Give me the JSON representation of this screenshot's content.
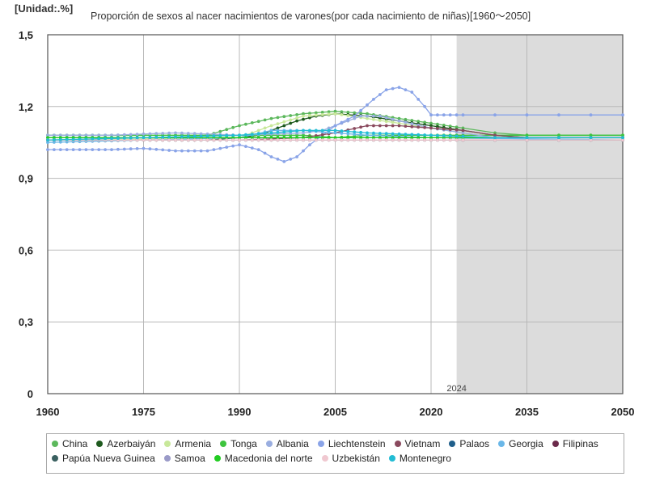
{
  "unit_label": "[Unidad:.%]",
  "chart_data": {
    "type": "line",
    "title": "Proporción de sexos al nacer nacimientos de varones(por cada nacimiento de niñas)[1960～2050]",
    "xlabel": "",
    "ylabel": "",
    "xlim": [
      1960,
      2050
    ],
    "ylim": [
      0,
      1.5
    ],
    "x_ticks": [
      "1960",
      "1975",
      "1990",
      "2005",
      "2020",
      "2035",
      "2050"
    ],
    "y_ticks": [
      "0",
      "0,3",
      "0,6",
      "0,9",
      "1,2",
      "1,5"
    ],
    "forecast_start": 2024,
    "forecast_label": "2024",
    "grid": true,
    "legend_position": "bottom",
    "series": [
      {
        "name": "China",
        "color": "#5cb85c",
        "points": [
          [
            1960,
            1.07
          ],
          [
            1980,
            1.07
          ],
          [
            1985,
            1.08
          ],
          [
            1990,
            1.12
          ],
          [
            1995,
            1.15
          ],
          [
            2000,
            1.17
          ],
          [
            2005,
            1.18
          ],
          [
            2010,
            1.17
          ],
          [
            2015,
            1.15
          ],
          [
            2020,
            1.13
          ],
          [
            2025,
            1.11
          ],
          [
            2030,
            1.09
          ],
          [
            2035,
            1.08
          ],
          [
            2050,
            1.08
          ]
        ]
      },
      {
        "name": "Azerbaiyán",
        "color": "#1e5a1e",
        "points": [
          [
            1960,
            1.06
          ],
          [
            1985,
            1.06
          ],
          [
            1990,
            1.07
          ],
          [
            1993,
            1.08
          ],
          [
            1996,
            1.11
          ],
          [
            1999,
            1.14
          ],
          [
            2002,
            1.16
          ],
          [
            2005,
            1.17
          ],
          [
            2010,
            1.16
          ],
          [
            2015,
            1.14
          ],
          [
            2020,
            1.12
          ],
          [
            2025,
            1.1
          ],
          [
            2030,
            1.08
          ],
          [
            2035,
            1.07
          ],
          [
            2050,
            1.07
          ]
        ]
      },
      {
        "name": "Armenia",
        "color": "#c8e89a",
        "points": [
          [
            1960,
            1.06
          ],
          [
            1990,
            1.07
          ],
          [
            1995,
            1.12
          ],
          [
            2000,
            1.16
          ],
          [
            2005,
            1.17
          ],
          [
            2010,
            1.15
          ],
          [
            2015,
            1.13
          ],
          [
            2020,
            1.11
          ],
          [
            2025,
            1.09
          ],
          [
            2030,
            1.07
          ],
          [
            2050,
            1.07
          ]
        ]
      },
      {
        "name": "Tonga",
        "color": "#3ec43e",
        "points": [
          [
            1960,
            1.08
          ],
          [
            2000,
            1.08
          ],
          [
            2005,
            1.07
          ],
          [
            2010,
            1.08
          ],
          [
            2020,
            1.08
          ],
          [
            2050,
            1.08
          ]
        ]
      },
      {
        "name": "Albania",
        "color": "#9aaee0",
        "points": [
          [
            1960,
            1.08
          ],
          [
            1970,
            1.08
          ],
          [
            1980,
            1.09
          ],
          [
            1990,
            1.08
          ],
          [
            2000,
            1.09
          ],
          [
            2003,
            1.1
          ],
          [
            2006,
            1.13
          ],
          [
            2009,
            1.16
          ],
          [
            2012,
            1.16
          ],
          [
            2015,
            1.14
          ],
          [
            2020,
            1.11
          ],
          [
            2025,
            1.09
          ],
          [
            2030,
            1.07
          ],
          [
            2050,
            1.07
          ]
        ]
      },
      {
        "name": "Liechtenstein",
        "color": "#8aa4e8",
        "points": [
          [
            1960,
            1.02
          ],
          [
            1970,
            1.02
          ],
          [
            1975,
            1.025
          ],
          [
            1980,
            1.015
          ],
          [
            1985,
            1.015
          ],
          [
            1990,
            1.04
          ],
          [
            1993,
            1.02
          ],
          [
            1995,
            0.99
          ],
          [
            1997,
            0.97
          ],
          [
            1999,
            0.99
          ],
          [
            2001,
            1.04
          ],
          [
            2003,
            1.08
          ],
          [
            2005,
            1.12
          ],
          [
            2008,
            1.16
          ],
          [
            2011,
            1.23
          ],
          [
            2013,
            1.27
          ],
          [
            2015,
            1.28
          ],
          [
            2017,
            1.26
          ],
          [
            2019,
            1.2
          ],
          [
            2020,
            1.165
          ],
          [
            2050,
            1.165
          ]
        ]
      },
      {
        "name": "Vietnam",
        "color": "#8a4a5e",
        "points": [
          [
            1960,
            1.06
          ],
          [
            1990,
            1.06
          ],
          [
            2000,
            1.07
          ],
          [
            2005,
            1.09
          ],
          [
            2010,
            1.12
          ],
          [
            2015,
            1.12
          ],
          [
            2020,
            1.11
          ],
          [
            2025,
            1.1
          ],
          [
            2030,
            1.08
          ],
          [
            2035,
            1.07
          ],
          [
            2050,
            1.07
          ]
        ]
      },
      {
        "name": "Palaos",
        "color": "#1f5f8b",
        "points": [
          [
            1960,
            1.06
          ],
          [
            2050,
            1.06
          ]
        ]
      },
      {
        "name": "Georgia",
        "color": "#6ab7e8",
        "points": [
          [
            1960,
            1.05
          ],
          [
            1990,
            1.07
          ],
          [
            1995,
            1.1
          ],
          [
            2000,
            1.1
          ],
          [
            2005,
            1.09
          ],
          [
            2010,
            1.08
          ],
          [
            2020,
            1.07
          ],
          [
            2050,
            1.06
          ]
        ]
      },
      {
        "name": "Filipinas",
        "color": "#6b2a4a",
        "points": [
          [
            1960,
            1.06
          ],
          [
            2050,
            1.06
          ]
        ]
      },
      {
        "name": "Papúa Nueva Guinea",
        "color": "#3a6060",
        "points": [
          [
            1960,
            1.06
          ],
          [
            2050,
            1.06
          ]
        ]
      },
      {
        "name": "Samoa",
        "color": "#9a9ac8",
        "points": [
          [
            1960,
            1.07
          ],
          [
            2050,
            1.07
          ]
        ]
      },
      {
        "name": "Macedonia del norte",
        "color": "#22cc22",
        "points": [
          [
            1960,
            1.07
          ],
          [
            2000,
            1.07
          ],
          [
            2010,
            1.07
          ],
          [
            2050,
            1.07
          ]
        ]
      },
      {
        "name": "Uzbekistán",
        "color": "#f0c8d0",
        "points": [
          [
            1960,
            1.06
          ],
          [
            2050,
            1.06
          ]
        ]
      },
      {
        "name": "Montenegro",
        "color": "#22bcd4",
        "points": [
          [
            1960,
            1.06
          ],
          [
            1990,
            1.08
          ],
          [
            2000,
            1.1
          ],
          [
            2005,
            1.1
          ],
          [
            2010,
            1.09
          ],
          [
            2020,
            1.08
          ],
          [
            2030,
            1.07
          ],
          [
            2050,
            1.07
          ]
        ]
      }
    ]
  }
}
